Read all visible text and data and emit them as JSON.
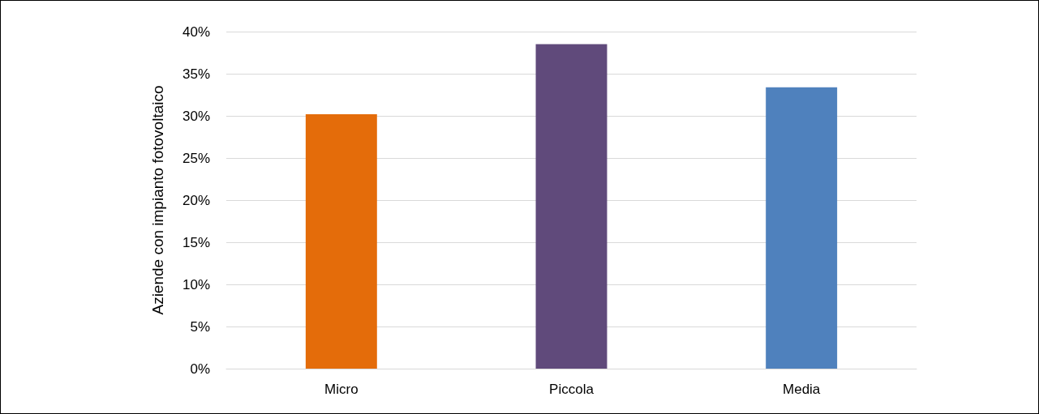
{
  "chart_data": {
    "type": "bar",
    "ylabel": "Aziende con impianto fotovoltaico",
    "categories": [
      "Micro",
      "Piccola",
      "Media"
    ],
    "values": [
      30.2,
      38.5,
      33.4
    ],
    "colors": [
      "#e46c0a",
      "#604a7b",
      "#4f81bd"
    ],
    "ylim": [
      0,
      40
    ],
    "yticks": [
      {
        "value": 0,
        "label": "0%"
      },
      {
        "value": 5,
        "label": "5%"
      },
      {
        "value": 10,
        "label": "10%"
      },
      {
        "value": 15,
        "label": "15%"
      },
      {
        "value": 20,
        "label": "20%"
      },
      {
        "value": 25,
        "label": "25%"
      },
      {
        "value": 30,
        "label": "30%"
      },
      {
        "value": 35,
        "label": "35%"
      },
      {
        "value": 40,
        "label": "40%"
      }
    ],
    "grid": "y"
  }
}
